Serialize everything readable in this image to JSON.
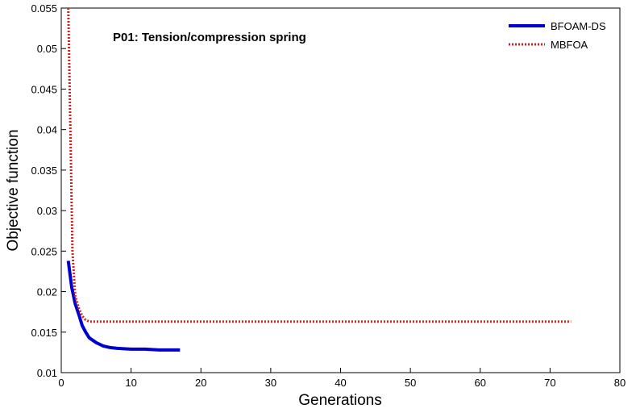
{
  "chart_data": {
    "type": "line",
    "title": "P01: Tension/compression spring",
    "xlabel": "Generations",
    "ylabel": "Objective function",
    "xlim": [
      0,
      80
    ],
    "ylim": [
      0.01,
      0.055
    ],
    "x_ticks": [
      "0",
      "10",
      "20",
      "30",
      "40",
      "50",
      "60",
      "70",
      "80"
    ],
    "y_ticks": [
      "0.01",
      "0.015",
      "0.02",
      "0.025",
      "0.03",
      "0.035",
      "0.04",
      "0.045",
      "0.05",
      "0.055"
    ],
    "grid": false,
    "legend_position": "top-right",
    "series": [
      {
        "name": "BFOAM-DS",
        "color": "#0000cc",
        "style": "solid",
        "x": [
          1,
          1.5,
          2,
          2.5,
          3,
          3.5,
          4,
          5,
          6,
          7,
          8,
          10,
          12,
          14,
          17
        ],
        "y": [
          0.0238,
          0.0205,
          0.0185,
          0.0172,
          0.0158,
          0.015,
          0.0143,
          0.0137,
          0.0133,
          0.0131,
          0.013,
          0.0129,
          0.0129,
          0.0128,
          0.0128
        ]
      },
      {
        "name": "MBFOA",
        "color": "#cc2222",
        "style": "dotted",
        "x": [
          1,
          1.3,
          1.6,
          2,
          2.5,
          3,
          3.5,
          4,
          10,
          20,
          40,
          60,
          73
        ],
        "y": [
          0.055,
          0.04,
          0.025,
          0.0195,
          0.018,
          0.017,
          0.0165,
          0.0163,
          0.0163,
          0.0163,
          0.0163,
          0.0163,
          0.0163
        ]
      }
    ]
  }
}
